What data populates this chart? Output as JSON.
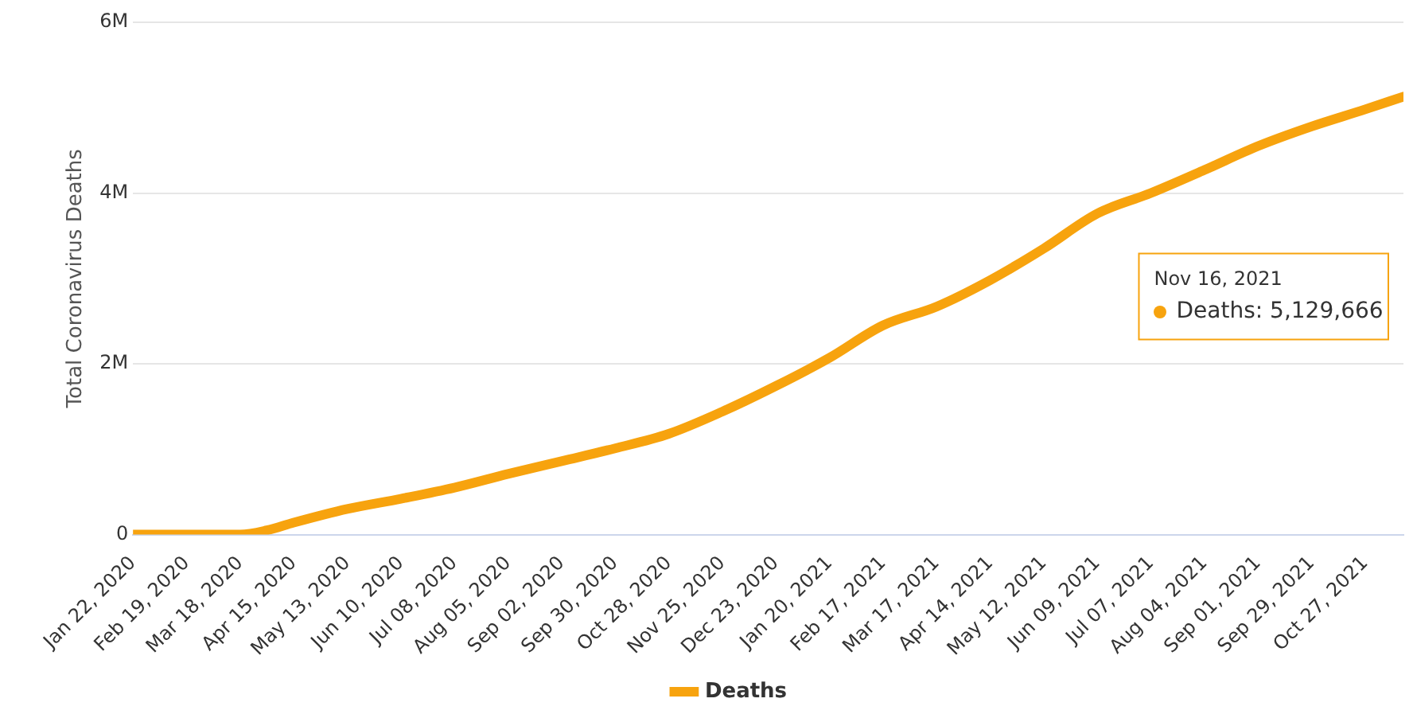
{
  "chart_data": {
    "type": "line",
    "ylabel": "Total Coronavirus Deaths",
    "x": [
      "2020-01-22",
      "2020-02-19",
      "2020-03-04",
      "2020-03-18",
      "2020-04-01",
      "2020-04-15",
      "2020-05-13",
      "2020-06-10",
      "2020-07-08",
      "2020-08-05",
      "2020-09-02",
      "2020-09-30",
      "2020-10-28",
      "2020-11-25",
      "2020-12-23",
      "2021-01-20",
      "2021-02-17",
      "2021-03-17",
      "2021-04-14",
      "2021-05-12",
      "2021-06-09",
      "2021-07-07",
      "2021-08-04",
      "2021-09-01",
      "2021-09-29",
      "2021-10-27",
      "2021-11-16"
    ],
    "series": [
      {
        "name": "Deaths",
        "color": "#f7a30e",
        "values": [
          0,
          0,
          0,
          0,
          50000,
          140000,
          300000,
          420000,
          550000,
          710000,
          860000,
          1010000,
          1180000,
          1440000,
          1740000,
          2070000,
          2450000,
          2670000,
          2980000,
          3350000,
          3760000,
          4000000,
          4270000,
          4550000,
          4780000,
          4980000,
          5129666
        ]
      }
    ],
    "xlim": [
      "2020-01-22",
      "2021-11-16"
    ],
    "xticks": [
      {
        "value": "2020-01-22",
        "label": "Jan 22, 2020"
      },
      {
        "value": "2020-02-19",
        "label": "Feb 19, 2020"
      },
      {
        "value": "2020-03-18",
        "label": "Mar 18, 2020"
      },
      {
        "value": "2020-04-15",
        "label": "Apr 15, 2020"
      },
      {
        "value": "2020-05-13",
        "label": "May 13, 2020"
      },
      {
        "value": "2020-06-10",
        "label": "Jun 10, 2020"
      },
      {
        "value": "2020-07-08",
        "label": "Jul 08, 2020"
      },
      {
        "value": "2020-08-05",
        "label": "Aug 05, 2020"
      },
      {
        "value": "2020-09-02",
        "label": "Sep 02, 2020"
      },
      {
        "value": "2020-09-30",
        "label": "Sep 30, 2020"
      },
      {
        "value": "2020-10-28",
        "label": "Oct 28, 2020"
      },
      {
        "value": "2020-11-25",
        "label": "Nov 25, 2020"
      },
      {
        "value": "2020-12-23",
        "label": "Dec 23, 2020"
      },
      {
        "value": "2021-01-20",
        "label": "Jan 20, 2021"
      },
      {
        "value": "2021-02-17",
        "label": "Feb 17, 2021"
      },
      {
        "value": "2021-03-17",
        "label": "Mar 17, 2021"
      },
      {
        "value": "2021-04-14",
        "label": "Apr 14, 2021"
      },
      {
        "value": "2021-05-12",
        "label": "May 12, 2021"
      },
      {
        "value": "2021-06-09",
        "label": "Jun 09, 2021"
      },
      {
        "value": "2021-07-07",
        "label": "Jul 07, 2021"
      },
      {
        "value": "2021-08-04",
        "label": "Aug 04, 2021"
      },
      {
        "value": "2021-09-01",
        "label": "Sep 01, 2021"
      },
      {
        "value": "2021-09-29",
        "label": "Sep 29, 2021"
      },
      {
        "value": "2021-10-27",
        "label": "Oct 27, 2021"
      }
    ],
    "ylim": [
      0,
      6000000
    ],
    "yticks": [
      0,
      {
        "value": 2000000,
        "label": "2M"
      },
      {
        "value": 4000000,
        "label": "4M"
      },
      {
        "value": 6000000,
        "label": "6M"
      }
    ],
    "annotations": [
      "Nov 16, 2021\nDeaths: 5,129,666"
    ],
    "grid": "y",
    "legend": "bottom",
    "marker": "none",
    "line_style": "solid"
  }
}
